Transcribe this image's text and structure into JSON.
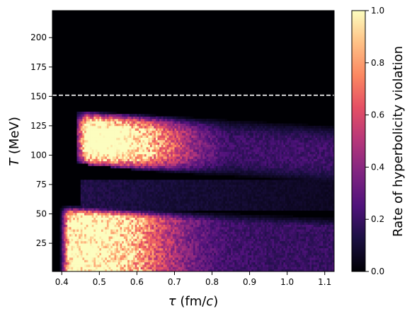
{
  "chart_data": {
    "type": "heatmap",
    "title": "",
    "xlabel_symbol": "τ",
    "xlabel_unit": " (fm/",
    "xlabel_unit_italic": "c",
    "xlabel_close": ")",
    "ylabel_symbol": "T",
    "ylabel_unit": " (MeV)",
    "colorbar_label": "Rate of hyperbolicity violation",
    "colormap": "magma",
    "xlim": [
      0.375,
      1.125
    ],
    "ylim": [
      1,
      223
    ],
    "x_ticks": [
      {
        "value": 0.4,
        "label": "0.4"
      },
      {
        "value": 0.5,
        "label": "0.5"
      },
      {
        "value": 0.6,
        "label": "0.6"
      },
      {
        "value": 0.7,
        "label": "0.7"
      },
      {
        "value": 0.8,
        "label": "0.8"
      },
      {
        "value": 0.9,
        "label": "0.9"
      },
      {
        "value": 1.0,
        "label": "1.0"
      },
      {
        "value": 1.1,
        "label": "1.1"
      }
    ],
    "y_ticks": [
      {
        "value": 25,
        "label": "25"
      },
      {
        "value": 50,
        "label": "50"
      },
      {
        "value": 75,
        "label": "75"
      },
      {
        "value": 100,
        "label": "100"
      },
      {
        "value": 125,
        "label": "125"
      },
      {
        "value": 150,
        "label": "150"
      },
      {
        "value": 175,
        "label": "175"
      },
      {
        "value": 200,
        "label": "200"
      }
    ],
    "colorbar_range": [
      0.0,
      1.0
    ],
    "colorbar_ticks": [
      {
        "value": 0.0,
        "label": "0.0"
      },
      {
        "value": 0.2,
        "label": "0.2"
      },
      {
        "value": 0.4,
        "label": "0.4"
      },
      {
        "value": 0.6,
        "label": "0.6"
      },
      {
        "value": 0.8,
        "label": "0.8"
      },
      {
        "value": 1.0,
        "label": "1.0"
      }
    ],
    "reference_line": {
      "y": 151,
      "style": "dashed",
      "color": "#ffffff"
    },
    "regions": [
      {
        "description_tau": [
          0.43,
          1.125
        ],
        "T_range": [
          75,
          143
        ],
        "peak_value": 1.0,
        "peak_tau": 0.5,
        "peak_T": 108
      },
      {
        "description_tau": [
          0.4,
          1.125
        ],
        "T_range": [
          1,
          52
        ],
        "peak_value": 0.95,
        "peak_tau": 0.5,
        "peak_T": 30
      }
    ]
  }
}
